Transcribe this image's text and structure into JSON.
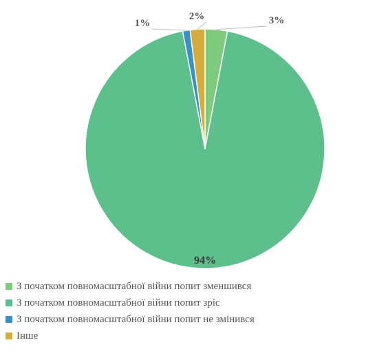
{
  "chart_data": {
    "type": "pie",
    "slices": [
      {
        "label": "З початком повномасштабної війни попит зменшився",
        "value": 3,
        "display": "3%",
        "color": "#7ecb7e"
      },
      {
        "label": "З початком повномасштабної війни попит зріс",
        "value": 94,
        "display": "94%",
        "color": "#5cbf8c"
      },
      {
        "label": "З початком повномасштабної війни попит не змінився",
        "value": 1,
        "display": "1%",
        "color": "#3a8fc9"
      },
      {
        "label": "Інше",
        "value": 2,
        "display": "2%",
        "color": "#d4ad3a"
      }
    ],
    "legend_position": "bottom",
    "slice_edge_color": "#ffffff"
  }
}
